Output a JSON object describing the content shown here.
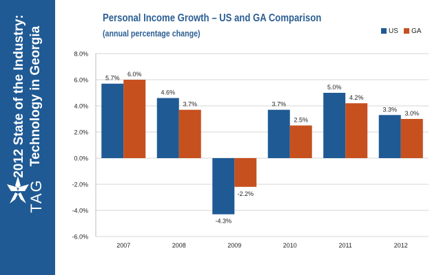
{
  "sidebar": {
    "line1": "2012 State of the Industry:",
    "line2": "Technology in Georgia",
    "logo_text": "TAG",
    "logo_icon": "tag-star-logo"
  },
  "colors": {
    "sidebar_bg": "#1f5a94",
    "us": "#1f5a94",
    "ga": "#c7501f",
    "title": "#2c5f93"
  },
  "chart_data": {
    "type": "bar",
    "title": "Personal Income Growth – US and GA Comparison",
    "subtitle": "(annual percentage change)",
    "xlabel": "",
    "ylabel": "",
    "categories": [
      "2007",
      "2008",
      "2009",
      "2010",
      "2011",
      "2012"
    ],
    "series": [
      {
        "name": "US",
        "values": [
          5.7,
          4.6,
          -4.3,
          3.7,
          5.0,
          3.3
        ],
        "labels": [
          "5.7%",
          "4.6%",
          "-4.3%",
          "3.7%",
          "5.0%",
          "3.3%"
        ]
      },
      {
        "name": "GA",
        "values": [
          6.0,
          3.7,
          -2.2,
          2.5,
          4.2,
          3.0
        ],
        "labels": [
          "6.0%",
          "3.7%",
          "-2.2%",
          "2.5%",
          "4.2%",
          "3.0%"
        ]
      }
    ],
    "ylim": [
      -6,
      8
    ],
    "yticks": [
      8,
      6,
      4,
      2,
      0,
      -2,
      -4,
      -6
    ],
    "ytick_labels": [
      "8.0%",
      "6.0%",
      "4.0%",
      "2.0%",
      "0.0%",
      "-2.0%",
      "-4.0%",
      "-6.0%"
    ],
    "grid": true,
    "legend": "top-right"
  }
}
